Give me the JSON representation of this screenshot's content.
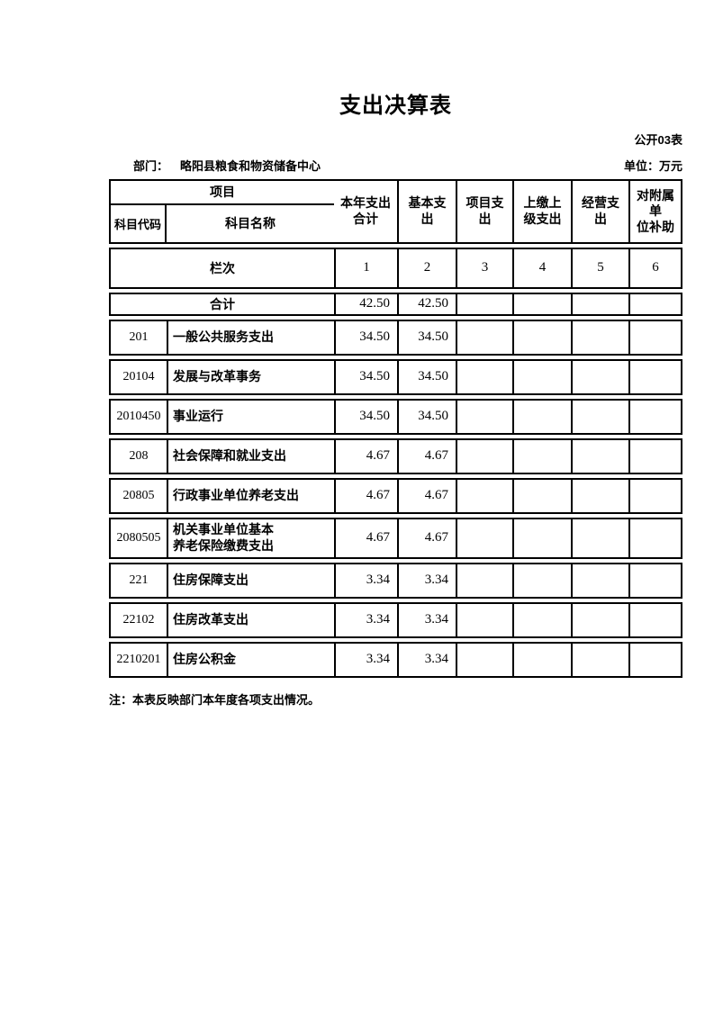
{
  "page": {
    "title": "支出决算表",
    "table_code": "公开03表",
    "department_label": "部门：",
    "department_value": "略阳县粮食和物资储备中心",
    "unit_label": "单位：万元",
    "note": "注：本表反映部门本年度各项支出情况。"
  },
  "table": {
    "header": {
      "project": "项目",
      "code": "科目代码",
      "name": "科目名称",
      "cols": [
        "本年支出\n合计",
        "基本支\n出",
        "项目支\n出",
        "上缴上\n级支出",
        "经营支\n出",
        "对附属\n单\n位补助"
      ]
    },
    "lanci": {
      "label": "栏次",
      "numbers": [
        "1",
        "2",
        "3",
        "4",
        "5",
        "6"
      ]
    },
    "total_row": {
      "label": "合计",
      "values": [
        "42.50",
        "42.50",
        "",
        "",
        "",
        ""
      ]
    },
    "rows": [
      {
        "code": "201",
        "name": "一般公共服务支出",
        "values": [
          "34.50",
          "34.50",
          "",
          "",
          "",
          ""
        ]
      },
      {
        "code": "20104",
        "name": "发展与改革事务",
        "values": [
          "34.50",
          "34.50",
          "",
          "",
          "",
          ""
        ]
      },
      {
        "code": "2010450",
        "name": "事业运行",
        "values": [
          "34.50",
          "34.50",
          "",
          "",
          "",
          ""
        ]
      },
      {
        "code": "208",
        "name": "社会保障和就业支出",
        "values": [
          "4.67",
          "4.67",
          "",
          "",
          "",
          ""
        ]
      },
      {
        "code": "20805",
        "name": "行政事业单位养老支出",
        "values": [
          "4.67",
          "4.67",
          "",
          "",
          "",
          ""
        ]
      },
      {
        "code": "2080505",
        "name": "机关事业单位基本\n养老保险缴费支出",
        "values": [
          "4.67",
          "4.67",
          "",
          "",
          "",
          ""
        ]
      },
      {
        "code": "221",
        "name": "住房保障支出",
        "values": [
          "3.34",
          "3.34",
          "",
          "",
          "",
          ""
        ]
      },
      {
        "code": "22102",
        "name": "住房改革支出",
        "values": [
          "3.34",
          "3.34",
          "",
          "",
          "",
          ""
        ]
      },
      {
        "code": "2210201",
        "name": "住房公积金",
        "values": [
          "3.34",
          "3.34",
          "",
          "",
          "",
          ""
        ]
      }
    ]
  }
}
